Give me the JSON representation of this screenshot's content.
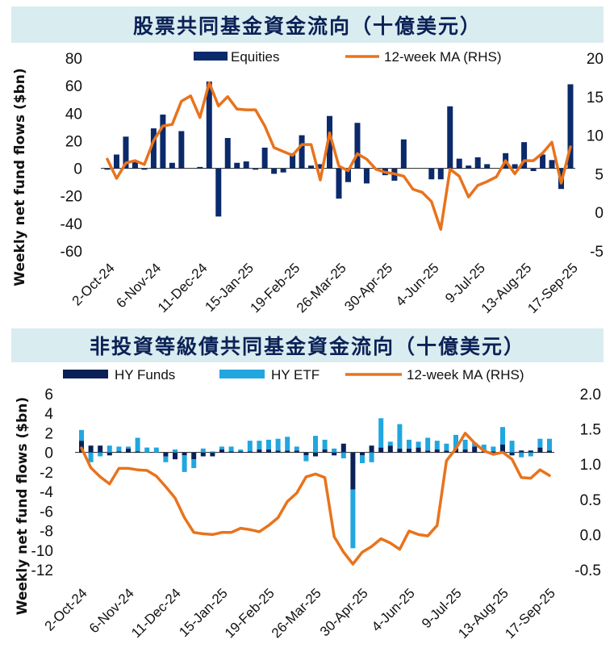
{
  "charts_titles": {
    "top": "股票共同基金資金流向（十億美元）",
    "bottom": "非投資等級債共同基金資金流向（十億美元）"
  },
  "colors": {
    "navy": "#0b2a6b",
    "hyfunds": "#0b2156",
    "hyetf": "#21a6e0",
    "ma": "#e8731c",
    "banner_bg": "#d9ecef"
  },
  "chart_data": [
    {
      "type": "bar",
      "title": "股票共同基金資金流向（十億美元）",
      "ylabel": "Weekly net fund flows ($bn)",
      "ylim": [
        -60,
        80
      ],
      "y2lim": [
        -5,
        20
      ],
      "yticks": [
        80,
        60,
        40,
        20,
        0,
        -20,
        -40,
        -60
      ],
      "y2ticks": [
        20,
        15,
        10,
        5,
        0,
        -5
      ],
      "x_tick_labels": [
        "2-Oct-24",
        "6-Nov-24",
        "11-Dec-24",
        "15-Jan-25",
        "19-Feb-25",
        "26-Mar-25",
        "30-Apr-25",
        "4-Jun-25",
        "9-Jul-25",
        "13-Aug-25",
        "17-Sep-25"
      ],
      "x_tick_positions": [
        0,
        5,
        10,
        15,
        20,
        25,
        30,
        35,
        40,
        45,
        50
      ],
      "legend_position": "top",
      "series": [
        {
          "name": "Equities",
          "kind": "bar",
          "values": [
            -1,
            10,
            23,
            5,
            -1,
            29,
            39,
            4,
            27,
            0,
            1,
            63,
            -35,
            22,
            4,
            5,
            -1,
            15,
            -4,
            -3,
            11,
            24,
            2,
            3,
            38,
            -22,
            -10,
            33,
            -11,
            0,
            -5,
            -9,
            21,
            0,
            0,
            -8,
            -8,
            45,
            7,
            2,
            8,
            3,
            0,
            11,
            3,
            19,
            -2,
            10,
            6,
            -15,
            61
          ]
        },
        {
          "name": "12-week MA (RHS)",
          "kind": "line",
          "axis": "right",
          "values": [
            6.9,
            4.4,
            6.4,
            6.7,
            6.2,
            9.3,
            11.2,
            11.4,
            14.4,
            15.1,
            12.3,
            16.8,
            13.8,
            15.0,
            13.4,
            13.3,
            13.3,
            11.2,
            8.4,
            7.9,
            7.4,
            8.8,
            8.8,
            4.2,
            10.3,
            6.0,
            5.4,
            7.6,
            6.9,
            5.6,
            5.2,
            5.0,
            4.7,
            3.0,
            2.6,
            1.4,
            -2.2,
            5.6,
            4.7,
            2.0,
            3.5,
            4.0,
            4.6,
            6.7,
            5.0,
            6.7,
            6.7,
            7.7,
            9.1,
            3.8,
            8.5
          ]
        }
      ]
    },
    {
      "type": "bar",
      "title": "非投資等級債共同基金資金流向（十億美元）",
      "ylabel": "Weekly net fund flows ($bn)",
      "ylim": [
        -12,
        6
      ],
      "y2lim": [
        -0.5,
        2.0
      ],
      "yticks": [
        6,
        4,
        2,
        0,
        -2,
        -4,
        -6,
        -8,
        -10,
        -12
      ],
      "y2ticks": [
        "2.0",
        "1.5",
        "1.0",
        "0.5",
        "0.0",
        "-0.5"
      ],
      "x_tick_labels": [
        "2-Oct-24",
        "6-Nov-24",
        "11-Dec-24",
        "15-Jan-25",
        "19-Feb-25",
        "26-Mar-25",
        "30-Apr-25",
        "4-Jun-25",
        "9-Jul-25",
        "13-Aug-25",
        "17-Sep-25"
      ],
      "x_tick_positions": [
        0,
        5,
        10,
        15,
        20,
        25,
        30,
        35,
        40,
        45,
        50
      ],
      "legend_position": "top",
      "series": [
        {
          "name": "HY Funds",
          "kind": "stacked-bar",
          "values": [
            1.2,
            0.7,
            0.7,
            -0.3,
            0.1,
            0.4,
            0.1,
            0.0,
            0.0,
            -0.4,
            -0.7,
            -0.3,
            -0.7,
            -0.4,
            -0.4,
            0.3,
            0.1,
            0.1,
            0.1,
            0.3,
            0.3,
            0.2,
            0.2,
            0.2,
            -0.3,
            -0.4,
            0.3,
            -0.3,
            0.9,
            -3.8,
            -0.3,
            0.7,
            0.5,
            0.7,
            0.4,
            0.4,
            0.5,
            0.2,
            0.3,
            0.2,
            0.4,
            0.3,
            0.6,
            0.1,
            0.1,
            0.8,
            -0.3,
            0.2,
            0.2,
            0.5,
            0.2
          ]
        },
        {
          "name": "HY ETF",
          "kind": "stacked-bar",
          "values": [
            1.1,
            -1.0,
            -0.4,
            0.7,
            0.5,
            0.2,
            1.4,
            0.5,
            0.5,
            -0.6,
            0.3,
            -1.7,
            -0.9,
            0.4,
            0.1,
            0.3,
            0.5,
            0.2,
            1.1,
            0.9,
            1.0,
            1.2,
            1.4,
            0.4,
            -0.6,
            1.7,
            1.0,
            0.4,
            -0.6,
            -6.0,
            -0.8,
            -1.0,
            3.0,
            0.4,
            2.5,
            0.9,
            0.6,
            1.3,
            0.9,
            0.7,
            1.4,
            1.0,
            0.4,
            0.7,
            0.5,
            1.8,
            1.2,
            -0.5,
            -0.4,
            0.9,
            1.2
          ]
        },
        {
          "name": "12-week MA (RHS)",
          "kind": "line",
          "axis": "right",
          "values": [
            1.23,
            0.95,
            0.82,
            0.72,
            0.94,
            0.94,
            0.92,
            0.91,
            0.83,
            0.68,
            0.52,
            0.24,
            0.03,
            0.01,
            0.0,
            0.03,
            0.03,
            0.09,
            0.07,
            0.04,
            0.13,
            0.24,
            0.47,
            0.59,
            0.82,
            0.86,
            0.81,
            -0.03,
            -0.25,
            -0.42,
            -0.25,
            -0.17,
            -0.06,
            -0.12,
            -0.21,
            0.05,
            0.0,
            -0.02,
            0.13,
            1.05,
            1.22,
            1.44,
            1.3,
            1.19,
            1.14,
            1.17,
            1.07,
            0.81,
            0.8,
            0.92,
            0.84
          ]
        }
      ]
    }
  ]
}
